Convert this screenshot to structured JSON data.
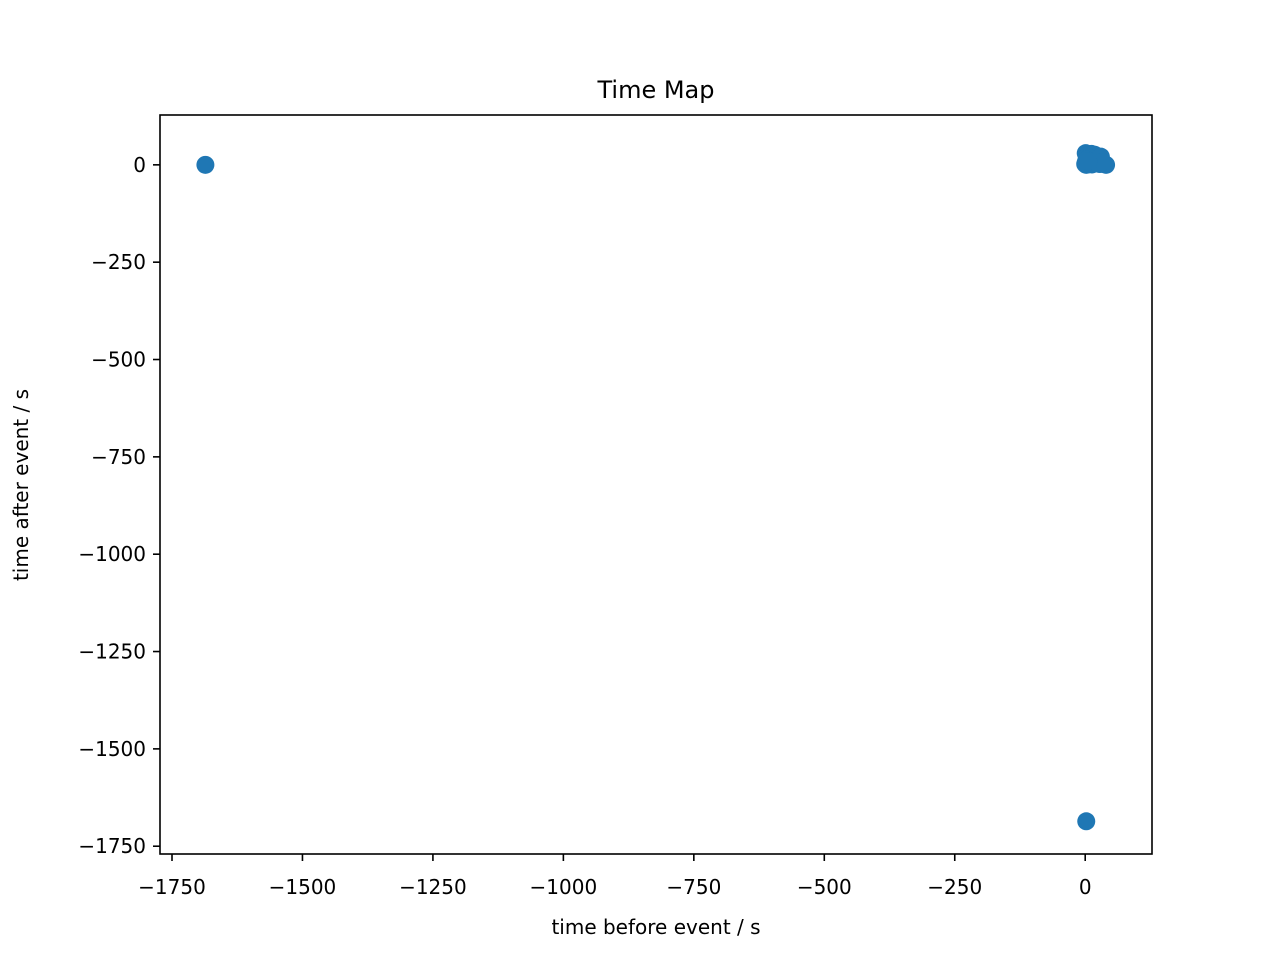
{
  "chart_data": {
    "type": "scatter",
    "title": "Time Map",
    "xlabel": "time before event / s",
    "ylabel": "time after event / s",
    "xlim": [
      -1773,
      128
    ],
    "ylim": [
      -1770,
      128
    ],
    "xticks": [
      {
        "value": -1750,
        "label": "−1750"
      },
      {
        "value": -1500,
        "label": "−1500"
      },
      {
        "value": -1250,
        "label": "−1250"
      },
      {
        "value": -1000,
        "label": "−1000"
      },
      {
        "value": -750,
        "label": "−750"
      },
      {
        "value": -500,
        "label": "−500"
      },
      {
        "value": -250,
        "label": "−250"
      },
      {
        "value": 0,
        "label": "0"
      }
    ],
    "yticks": [
      {
        "value": 0,
        "label": "0"
      },
      {
        "value": -250,
        "label": "−250"
      },
      {
        "value": -500,
        "label": "−500"
      },
      {
        "value": -750,
        "label": "−750"
      },
      {
        "value": -1000,
        "label": "−1000"
      },
      {
        "value": -1250,
        "label": "−1250"
      },
      {
        "value": -1500,
        "label": "−1500"
      },
      {
        "value": -1750,
        "label": "−1750"
      }
    ],
    "grid": false,
    "legend": "none",
    "color": "#1f77b4",
    "series": [
      {
        "points": [
          {
            "x": -1686,
            "y": 0
          },
          {
            "x": 2,
            "y": -1686
          },
          {
            "x": 40,
            "y": 0
          },
          {
            "x": 0,
            "y": 2
          },
          {
            "x": 1,
            "y": 30
          },
          {
            "x": 2,
            "y": 10
          },
          {
            "x": 3,
            "y": 20
          },
          {
            "x": 4,
            "y": 5
          },
          {
            "x": 5,
            "y": 15
          },
          {
            "x": 6,
            "y": 25
          },
          {
            "x": 7,
            "y": 3
          },
          {
            "x": 8,
            "y": 12
          },
          {
            "x": 9,
            "y": 22
          },
          {
            "x": 10,
            "y": 8
          },
          {
            "x": 11,
            "y": 18
          },
          {
            "x": 12,
            "y": 28
          },
          {
            "x": 13,
            "y": 1
          },
          {
            "x": 14,
            "y": 14
          },
          {
            "x": 15,
            "y": 24
          },
          {
            "x": 16,
            "y": 6
          },
          {
            "x": 17,
            "y": 16
          },
          {
            "x": 18,
            "y": 26
          },
          {
            "x": 19,
            "y": 4
          },
          {
            "x": 20,
            "y": 11
          },
          {
            "x": 22,
            "y": 19
          },
          {
            "x": 24,
            "y": 9
          },
          {
            "x": 26,
            "y": 17
          },
          {
            "x": 28,
            "y": 2
          },
          {
            "x": 30,
            "y": 21
          },
          {
            "x": 32,
            "y": 7
          },
          {
            "x": 2,
            "y": 0
          },
          {
            "x": 5,
            "y": 1
          },
          {
            "x": 1,
            "y": 6
          },
          {
            "x": 3,
            "y": 13
          },
          {
            "x": 6,
            "y": 9
          }
        ]
      }
    ]
  }
}
